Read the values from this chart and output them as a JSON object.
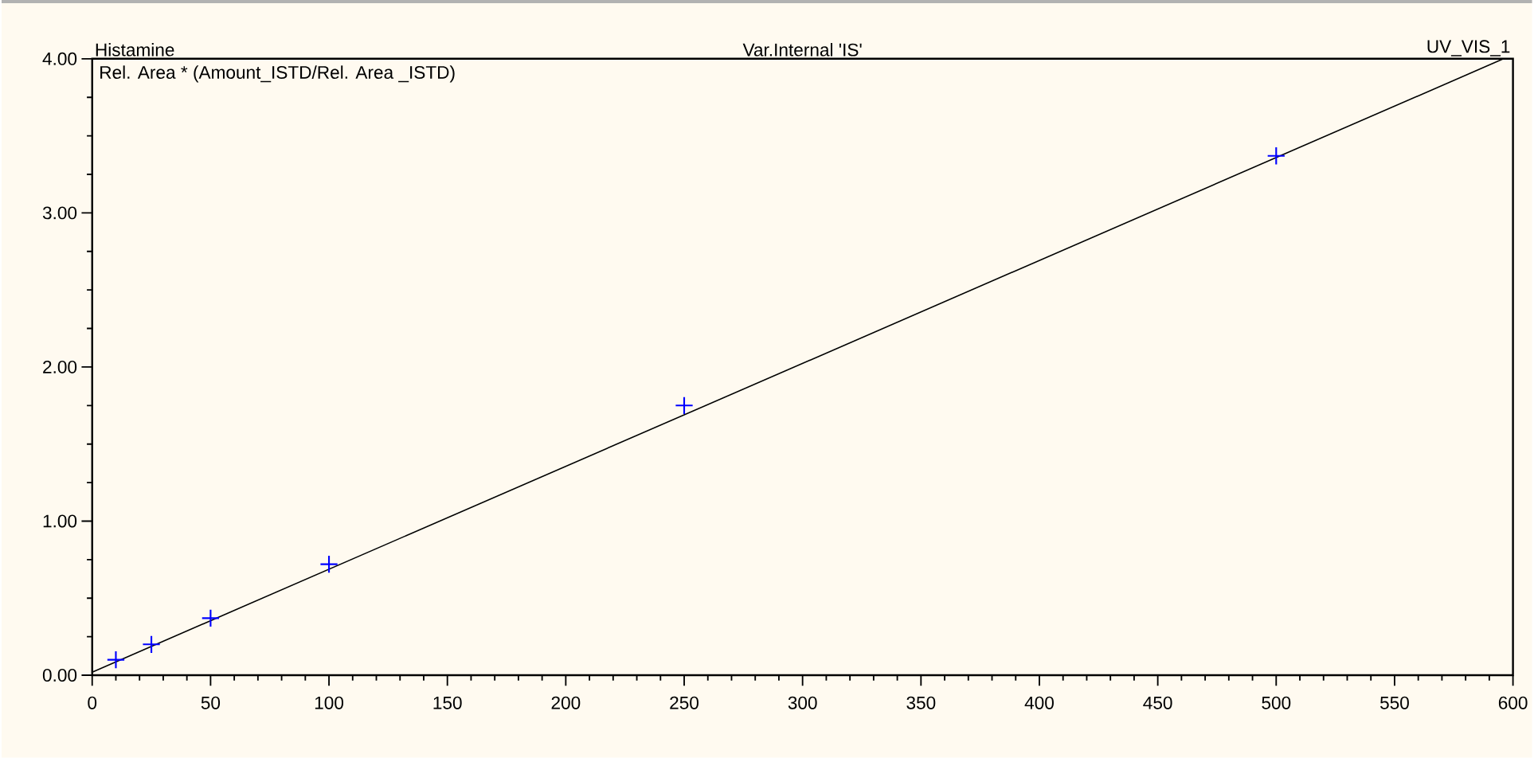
{
  "chart_data": {
    "type": "scatter",
    "title": "Histamine",
    "subtitle": "Var.Internal  'IS'",
    "ylabel": "Rel. Area  * (Amount_ISTD/Rel. Area _ISTD)",
    "annotations": [
      "UV_VIS_1"
    ],
    "marker": "cross",
    "series": [
      {
        "color": "#0000ff",
        "x": [
          10,
          25,
          50,
          100,
          250,
          500
        ],
        "values": [
          0.1,
          0.2,
          0.37,
          0.72,
          1.75,
          3.37
        ]
      },
      {
        "type": "line",
        "marker": "none",
        "color": "#000000",
        "x": [
          0,
          596
        ],
        "values": [
          0.02,
          4.0
        ]
      }
    ],
    "xlim": [
      0,
      600
    ],
    "xticks": [
      0,
      50,
      100,
      150,
      200,
      250,
      300,
      350,
      400,
      450,
      500,
      550,
      600
    ],
    "ylim": [
      0,
      4
    ],
    "yticks": [
      {
        "value": 0,
        "label": "0.00"
      },
      {
        "value": 1,
        "label": "1.00"
      },
      {
        "value": 2,
        "label": "2.00"
      },
      {
        "value": 3,
        "label": "3.00"
      },
      {
        "value": 4,
        "label": "4.00"
      }
    ]
  }
}
